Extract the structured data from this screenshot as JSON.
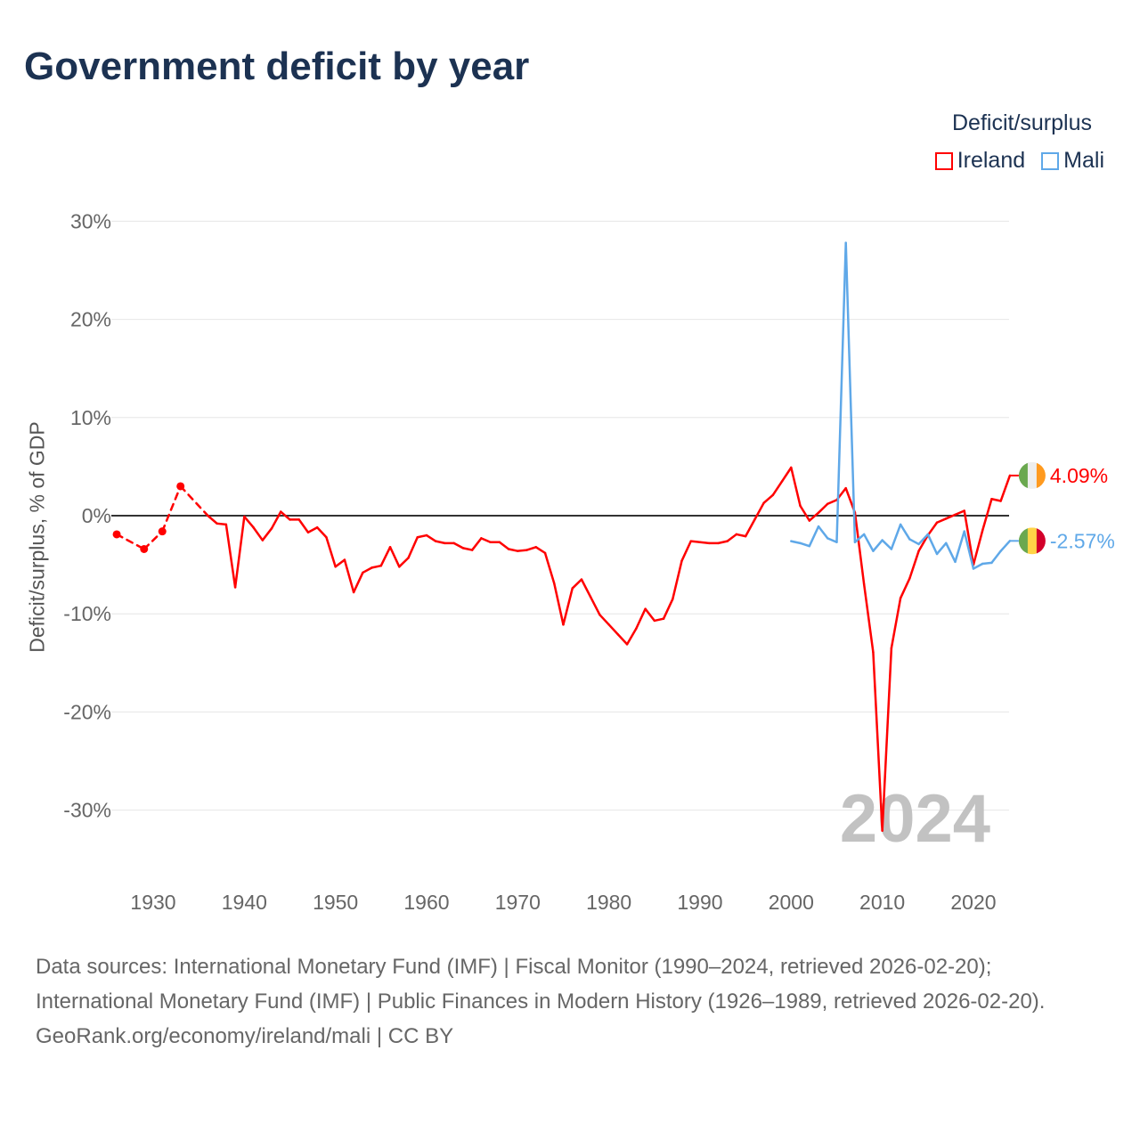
{
  "title": "Government deficit by year",
  "legend": {
    "title": "Deficit/surplus",
    "items": [
      {
        "label": "Ireland",
        "color": "#ff0000"
      },
      {
        "label": "Mali",
        "color": "#5fa8e8"
      }
    ]
  },
  "year_watermark": "2024",
  "footer": {
    "sources": "Data sources: International Monetary Fund (IMF) | Fiscal Monitor (1990–2024, retrieved 2026-02-20); International Monetary Fund (IMF) | Public Finances in Modern History (1926–1989, retrieved 2026-02-20).",
    "credit": "GeoRank.org/economy/ireland/mali | CC BY"
  },
  "chart_data": {
    "type": "line",
    "title": "Government deficit by year",
    "xlabel": "",
    "ylabel": "Deficit/surplus, % of GDP",
    "xlim": [
      1926,
      2024
    ],
    "ylim": [
      -35,
      32
    ],
    "yticks": [
      -30,
      -20,
      -10,
      0,
      10,
      20,
      30
    ],
    "ytick_labels": [
      "-30%",
      "-20%",
      "-10%",
      "0%",
      "10%",
      "20%",
      "30%"
    ],
    "xticks": [
      1930,
      1940,
      1950,
      1960,
      1970,
      1980,
      1990,
      2000,
      2010,
      2020
    ],
    "xtick_labels": [
      "1930",
      "1940",
      "1950",
      "1960",
      "1970",
      "1980",
      "1990",
      "2000",
      "2010",
      "2020"
    ],
    "grid": true,
    "legend_position": "top-right",
    "series": [
      {
        "name": "Ireland",
        "color": "#ff0000",
        "end_label": "4.09%",
        "flag": [
          "#6aa84f",
          "#eeeeee",
          "#ff9a1f"
        ],
        "x": [
          1926,
          1929,
          1931,
          1933,
          1936,
          1937,
          1938,
          1939,
          1940,
          1941,
          1942,
          1943,
          1944,
          1945,
          1946,
          1947,
          1948,
          1949,
          1950,
          1951,
          1952,
          1953,
          1954,
          1955,
          1956,
          1957,
          1958,
          1959,
          1960,
          1961,
          1962,
          1963,
          1964,
          1965,
          1966,
          1967,
          1968,
          1969,
          1970,
          1971,
          1972,
          1973,
          1974,
          1975,
          1976,
          1977,
          1978,
          1979,
          1980,
          1981,
          1982,
          1983,
          1984,
          1985,
          1986,
          1987,
          1988,
          1989,
          1990,
          1991,
          1992,
          1993,
          1994,
          1995,
          1996,
          1997,
          1998,
          1999,
          2000,
          2001,
          2002,
          2003,
          2004,
          2005,
          2006,
          2007,
          2008,
          2009,
          2010,
          2011,
          2012,
          2013,
          2014,
          2015,
          2016,
          2017,
          2018,
          2019,
          2020,
          2021,
          2022,
          2023,
          2024
        ],
        "y": [
          -1.9,
          -3.4,
          -1.6,
          3.0,
          0,
          -0.8,
          -0.9,
          -7.3,
          -0.1,
          -1.2,
          -2.5,
          -1.3,
          0.4,
          -0.4,
          -0.4,
          -1.7,
          -1.2,
          -2.2,
          -5.2,
          -4.5,
          -7.8,
          -5.8,
          -5.3,
          -5.1,
          -3.2,
          -5.2,
          -4.3,
          -2.2,
          -2.0,
          -2.6,
          -2.8,
          -2.8,
          -3.3,
          -3.5,
          -2.3,
          -2.7,
          -2.7,
          -3.4,
          -3.6,
          -3.5,
          -3.2,
          -3.8,
          -6.9,
          -11.1,
          -7.4,
          -6.5,
          -8.3,
          -10.1,
          -11.1,
          -12.1,
          -13.1,
          -11.5,
          -9.5,
          -10.7,
          -10.5,
          -8.5,
          -4.6,
          -2.6,
          -2.7,
          -2.8,
          -2.8,
          -2.6,
          -1.9,
          -2.1,
          -0.4,
          1.3,
          2.1,
          3.5,
          4.9,
          1.0,
          -0.5,
          0.3,
          1.2,
          1.6,
          2.8,
          0.3,
          -7.0,
          -13.9,
          -32.1,
          -13.5,
          -8.4,
          -6.4,
          -3.6,
          -2.0,
          -0.7,
          -0.3,
          0.1,
          0.5,
          -5.0,
          -1.5,
          1.7,
          1.5,
          4.09
        ]
      },
      {
        "name": "Mali",
        "color": "#5fa8e8",
        "end_label": "-2.57%",
        "flag": [
          "#6aa84f",
          "#ffd447",
          "#d3002a"
        ],
        "x": [
          2000,
          2001,
          2002,
          2003,
          2004,
          2005,
          2006,
          2007,
          2008,
          2009,
          2010,
          2011,
          2012,
          2013,
          2014,
          2015,
          2016,
          2017,
          2018,
          2019,
          2020,
          2021,
          2022,
          2023,
          2024
        ],
        "y": [
          -2.6,
          -2.8,
          -3.1,
          -1.1,
          -2.3,
          -2.7,
          27.8,
          -2.7,
          -1.9,
          -3.6,
          -2.5,
          -3.4,
          -0.9,
          -2.4,
          -2.9,
          -1.9,
          -3.9,
          -2.8,
          -4.7,
          -1.6,
          -5.4,
          -4.9,
          -4.8,
          -3.6,
          -2.57
        ]
      }
    ]
  }
}
